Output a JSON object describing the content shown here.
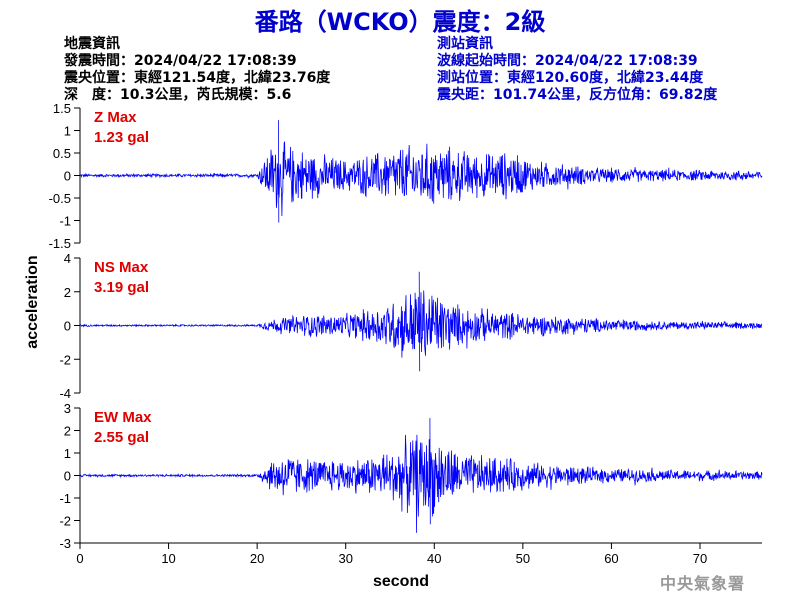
{
  "header": {
    "title": "番路（WCKO）震度：2級"
  },
  "earthquake_info": {
    "heading": "地震資訊",
    "time": "發震時間：2024/04/22 17:08:39",
    "epicenter": "震央位置：東經121.54度，北緯23.76度",
    "depth_magnitude": "深　度：10.3公里，芮氏規模：5.6"
  },
  "station_info": {
    "heading": "測站資訊",
    "wave_start": "波線起始時間：2024/04/22 17:08:39",
    "location": "測站位置：東經120.60度，北緯23.44度",
    "distance": "震央距：101.74公里，反方位角：69.82度"
  },
  "footer": {
    "agency": "中央氣象署"
  },
  "colors": {
    "trace": "#0000ff",
    "title": "#0000cc",
    "station_info": "#0000cc",
    "panel_label": "#e00000",
    "footer": "#999999"
  },
  "chart_data": {
    "type": "line",
    "x_label": "second",
    "y_label": "acceleration",
    "x_range": [
      0,
      77
    ],
    "x_ticks": [
      0,
      10,
      20,
      30,
      40,
      50,
      60,
      70
    ],
    "panels": [
      {
        "name": "Z",
        "label_line1": "Z Max",
        "label_line2": "1.23 gal",
        "max_gal": 1.23,
        "y_range": [
          -1.5,
          1.5
        ],
        "y_ticks": [
          -1.5,
          -1,
          -0.5,
          0,
          0.5,
          1,
          1.5
        ],
        "envelope": [
          [
            0,
            0.04
          ],
          [
            20,
            0.04
          ],
          [
            21,
            0.55
          ],
          [
            22,
            0.9
          ],
          [
            24,
            0.75
          ],
          [
            27,
            0.55
          ],
          [
            30,
            0.4
          ],
          [
            33,
            0.55
          ],
          [
            36,
            0.75
          ],
          [
            40,
            0.8
          ],
          [
            45,
            0.55
          ],
          [
            48,
            0.6
          ],
          [
            52,
            0.35
          ],
          [
            58,
            0.2
          ],
          [
            65,
            0.15
          ],
          [
            77,
            0.12
          ]
        ]
      },
      {
        "name": "NS",
        "label_line1": "NS Max",
        "label_line2": "3.19 gal",
        "max_gal": 3.19,
        "y_range": [
          -4,
          4
        ],
        "y_ticks": [
          -4,
          -2,
          0,
          2,
          4
        ],
        "envelope": [
          [
            0,
            0.06
          ],
          [
            20,
            0.06
          ],
          [
            21,
            0.35
          ],
          [
            23,
            0.6
          ],
          [
            26,
            0.8
          ],
          [
            30,
            0.75
          ],
          [
            34,
            1.4
          ],
          [
            36,
            2.0
          ],
          [
            38,
            2.8
          ],
          [
            40,
            2.4
          ],
          [
            43,
            1.3
          ],
          [
            47,
            1.0
          ],
          [
            52,
            0.7
          ],
          [
            58,
            0.5
          ],
          [
            65,
            0.3
          ],
          [
            77,
            0.2
          ]
        ]
      },
      {
        "name": "EW",
        "label_line1": "EW Max",
        "label_line2": "2.55 gal",
        "max_gal": 2.55,
        "y_range": [
          -3,
          3
        ],
        "y_ticks": [
          -3,
          -2,
          -1,
          0,
          1,
          2,
          3
        ],
        "envelope": [
          [
            0,
            0.06
          ],
          [
            20,
            0.06
          ],
          [
            21,
            0.6
          ],
          [
            23,
            1.2
          ],
          [
            25,
            0.9
          ],
          [
            28,
            0.8
          ],
          [
            32,
            0.9
          ],
          [
            35,
            1.3
          ],
          [
            38,
            2.2
          ],
          [
            40,
            2.0
          ],
          [
            43,
            1.1
          ],
          [
            48,
            0.9
          ],
          [
            52,
            0.6
          ],
          [
            58,
            0.4
          ],
          [
            65,
            0.3
          ],
          [
            77,
            0.2
          ]
        ]
      }
    ]
  }
}
